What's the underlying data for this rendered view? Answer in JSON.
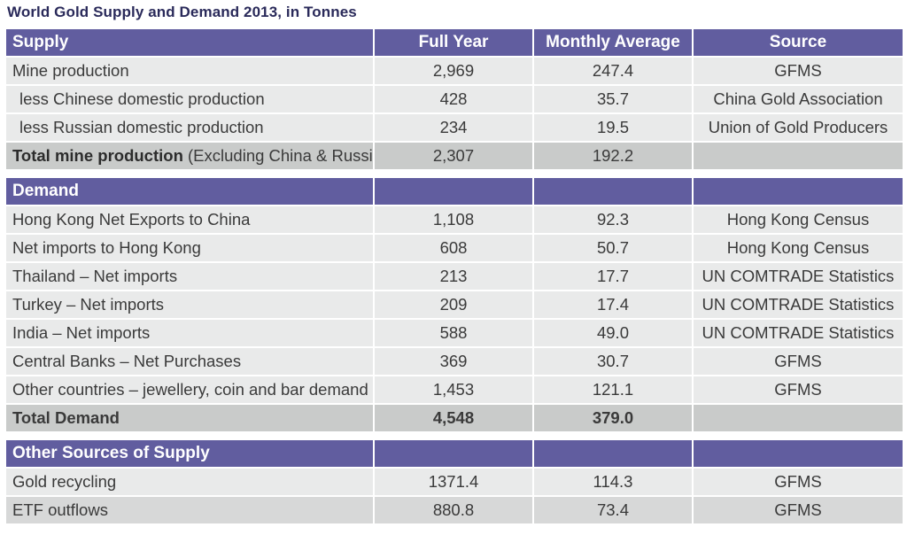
{
  "title": "World Gold Supply and Demand 2013, in Tonnes",
  "columns": [
    "Full Year",
    "Monthly Average",
    "Source"
  ],
  "supply": {
    "header": "Supply",
    "rows": [
      {
        "label": "Mine production",
        "full_year": "2,969",
        "monthly": "247.4",
        "source": "GFMS"
      },
      {
        "label": "less Chinese domestic production",
        "full_year": "428",
        "monthly": "35.7",
        "source": "China Gold Association"
      },
      {
        "label": "less Russian domestic production",
        "full_year": "234",
        "monthly": "19.5",
        "source": "Union of Gold Producers"
      }
    ],
    "total": {
      "label": "Total mine production",
      "label_suffix": " (Excluding China & Russia)",
      "full_year": "2,307",
      "monthly": "192.2",
      "source": ""
    }
  },
  "demand": {
    "header": "Demand",
    "rows": [
      {
        "label": "Hong Kong Net Exports to China",
        "full_year": "1,108",
        "monthly": "92.3",
        "source": "Hong Kong Census"
      },
      {
        "label": "Net imports to Hong Kong",
        "full_year": "608",
        "monthly": "50.7",
        "source": "Hong Kong Census"
      },
      {
        "label": "Thailand – Net imports",
        "full_year": "213",
        "monthly": "17.7",
        "source": "UN COMTRADE Statistics"
      },
      {
        "label": "Turkey – Net imports",
        "full_year": "209",
        "monthly": "17.4",
        "source": "UN COMTRADE Statistics"
      },
      {
        "label": "India – Net imports",
        "full_year": "588",
        "monthly": "49.0",
        "source": "UN COMTRADE Statistics"
      },
      {
        "label": "Central Banks – Net Purchases",
        "full_year": "369",
        "monthly": "30.7",
        "source": "GFMS"
      },
      {
        "label": "Other countries – jewellery, coin and bar demand",
        "full_year": "1,453",
        "monthly": "121.1",
        "source": "GFMS"
      }
    ],
    "total": {
      "label": "Total Demand",
      "full_year": "4,548",
      "monthly": "379.0",
      "source": ""
    }
  },
  "other": {
    "header": "Other Sources of Supply",
    "rows": [
      {
        "label": "Gold recycling",
        "full_year": "1371.4",
        "monthly": "114.3",
        "source": "GFMS"
      },
      {
        "label": "ETF outflows",
        "full_year": "880.8",
        "monthly": "73.4",
        "source": "GFMS"
      }
    ]
  }
}
